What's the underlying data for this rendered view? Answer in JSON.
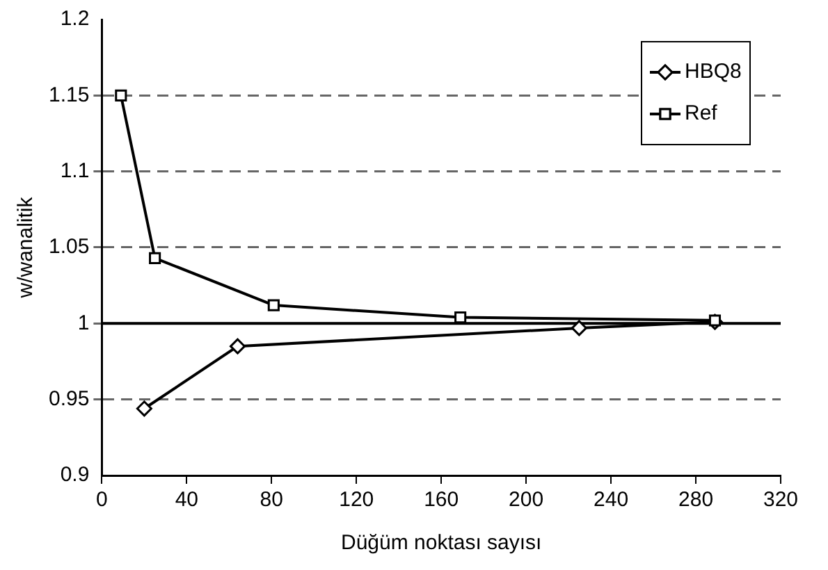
{
  "chart_data": {
    "type": "line",
    "xlabel": "Düğüm noktası sayısı",
    "ylabel": "w/wanalitik",
    "xlim": [
      0,
      320
    ],
    "xticks": [
      0,
      40,
      80,
      120,
      160,
      200,
      240,
      280,
      320
    ],
    "ylim": [
      0.9,
      1.2
    ],
    "yticks": [
      0.9,
      0.95,
      1,
      1.05,
      1.1,
      1.15,
      1.2
    ],
    "grid": "y",
    "legend": "top right",
    "line_style": "solid",
    "ref_lines": [
      {
        "axis": "y",
        "value": 1,
        "color": "#000000"
      }
    ],
    "series": [
      {
        "name": "HBQ8",
        "color": "#000000",
        "marker": "diamond",
        "x": [
          20,
          64,
          225,
          289
        ],
        "values": [
          0.944,
          0.985,
          0.997,
          1.001
        ]
      },
      {
        "name": "Ref",
        "color": "#000000",
        "marker": "square",
        "x": [
          9,
          25,
          81,
          169,
          289
        ],
        "values": [
          1.15,
          1.043,
          1.012,
          1.004,
          1.002
        ]
      }
    ]
  }
}
